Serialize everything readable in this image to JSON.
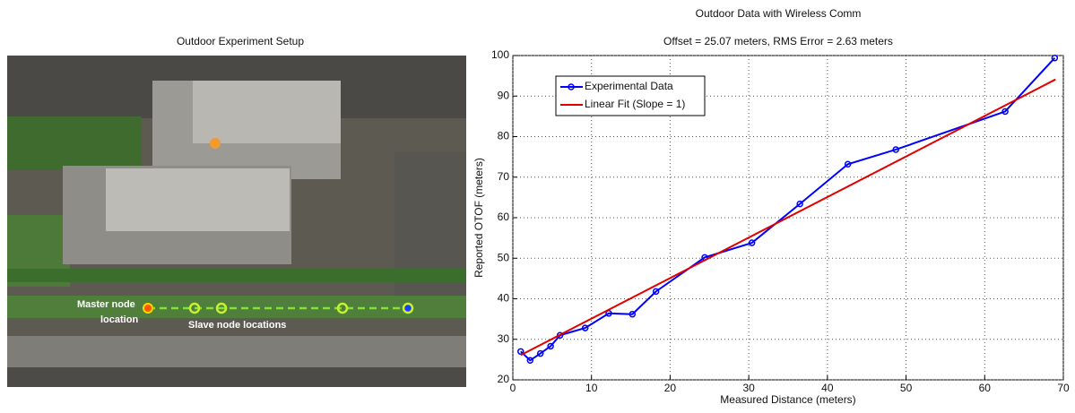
{
  "image_panel": {
    "title": "Outdoor Experiment Setup",
    "master_label": [
      "Master node",
      "location"
    ],
    "slave_label": "Slave node locations"
  },
  "chart_data": {
    "type": "line",
    "title": "Outdoor Data with Wireless Comm",
    "subtitle": "Offset = 25.07 meters, RMS Error = 2.63 meters",
    "xlabel": "Measured Distance (meters)",
    "ylabel": "Reported OTOF (meters)",
    "xlim": [
      0,
      70
    ],
    "ylim": [
      20,
      100
    ],
    "xticks": [
      0,
      10,
      20,
      30,
      40,
      50,
      60,
      70
    ],
    "yticks": [
      20,
      30,
      40,
      50,
      60,
      70,
      80,
      90,
      100
    ],
    "grid": true,
    "legend": "upper left",
    "series": [
      {
        "name": "Experimental Data",
        "color": "#0000ff",
        "marker": "circle",
        "x": [
          1,
          2.2,
          3.5,
          4.8,
          6,
          9.2,
          12.2,
          15.2,
          18.2,
          24.4,
          30.4,
          36.5,
          42.6,
          48.7,
          62.6,
          68.9
        ],
        "values": [
          27,
          24.8,
          26.5,
          28.3,
          31,
          32.8,
          36.4,
          36.2,
          41.8,
          50.2,
          53.8,
          63.4,
          73.2,
          76.8,
          86.2,
          99.4
        ]
      },
      {
        "name": "Linear Fit (Slope = 1)",
        "color": "#e00000",
        "x": [
          1,
          69
        ],
        "values": [
          26.1,
          94.1
        ]
      }
    ]
  }
}
